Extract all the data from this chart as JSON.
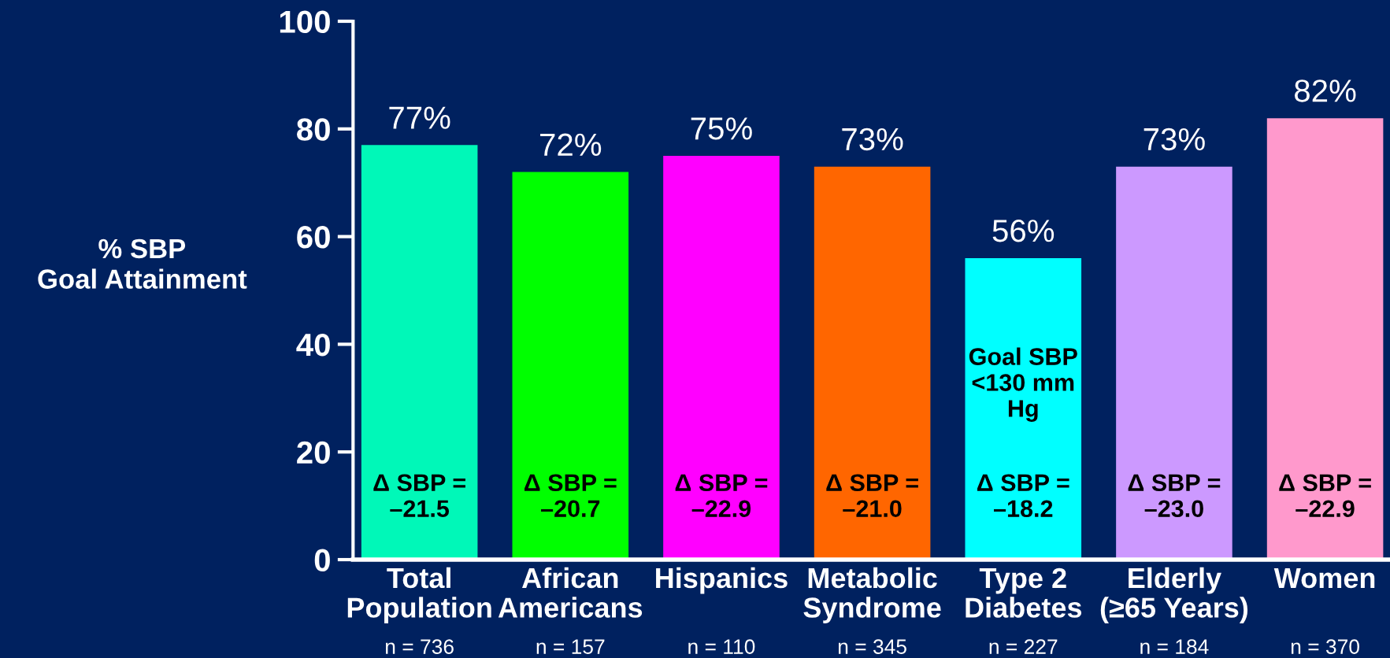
{
  "chart_data": {
    "type": "bar",
    "ylabel": "% SBP\nGoal Attainment",
    "categories": [
      "Total\nPopulation",
      "African\nAmericans",
      "Hispanics",
      "Metabolic\nSyndrome",
      "Type 2\nDiabetes",
      "Elderly\n(≥65 Years)",
      "Women"
    ],
    "values": [
      77,
      72,
      75,
      73,
      56,
      73,
      82
    ],
    "value_labels": [
      "77%",
      "72%",
      "75%",
      "73%",
      "56%",
      "73%",
      "82%"
    ],
    "colors": [
      "#00f8b8",
      "#00ff00",
      "#ff00ff",
      "#ff6600",
      "#00ffff",
      "#cc99ff",
      "#ff99cc"
    ],
    "ylim": [
      0,
      100
    ],
    "yticks": [
      0,
      20,
      40,
      60,
      80,
      100
    ],
    "annotations": [
      "Δ SBP =\n–21.5",
      "Δ SBP =\n–20.7",
      "Δ SBP =\n–22.9",
      "Δ SBP =\n–21.0",
      "Δ SBP =\n–18.2",
      "Δ SBP =\n–23.0",
      "Δ SBP =\n–22.9",
      "Goal SBP\n<130 mm\nHg",
      "n = 736",
      "n = 157",
      "n = 110",
      "n = 345",
      "n = 227",
      "n = 184",
      "n = 370"
    ]
  }
}
